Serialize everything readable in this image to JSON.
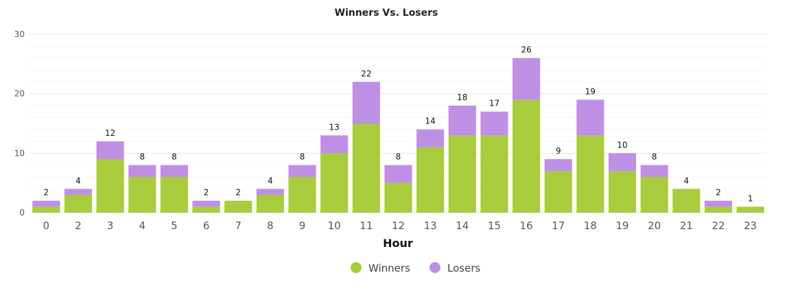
{
  "chart_data": {
    "type": "bar",
    "stacked": true,
    "title": "Winners Vs. Losers",
    "xlabel": "Hour",
    "ylabel": "",
    "ylim": [
      0,
      30
    ],
    "yticks": [
      "0",
      "10",
      "20",
      "30"
    ],
    "grid": true,
    "legend_position": "bottom",
    "categories": [
      "0",
      "2",
      "3",
      "4",
      "5",
      "6",
      "7",
      "8",
      "9",
      "10",
      "11",
      "12",
      "13",
      "14",
      "15",
      "16",
      "17",
      "18",
      "19",
      "20",
      "21",
      "22",
      "23"
    ],
    "series": [
      {
        "name": "Winners",
        "color": "#a8cc3e",
        "values": [
          1,
          3,
          9,
          6,
          6,
          1,
          2,
          3,
          6,
          10,
          15,
          5,
          11,
          13,
          13,
          19,
          7,
          13,
          7,
          6,
          4,
          1,
          1
        ]
      },
      {
        "name": "Losers",
        "color": "#bf8fe5",
        "values": [
          1,
          1,
          3,
          2,
          2,
          1,
          0,
          1,
          2,
          3,
          7,
          3,
          3,
          5,
          4,
          7,
          2,
          6,
          3,
          2,
          0,
          1,
          0
        ]
      }
    ],
    "totals": [
      2,
      4,
      12,
      8,
      8,
      2,
      2,
      4,
      8,
      13,
      22,
      8,
      14,
      18,
      17,
      26,
      9,
      19,
      10,
      8,
      4,
      2,
      1
    ]
  }
}
